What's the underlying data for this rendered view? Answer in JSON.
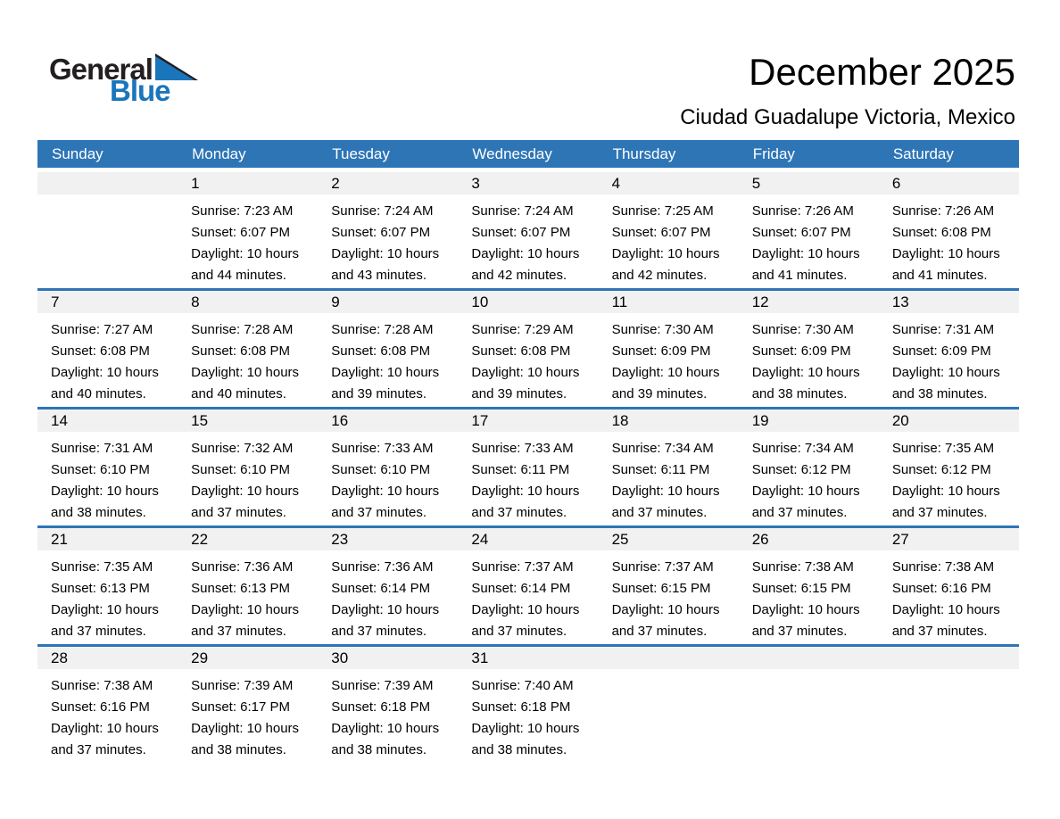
{
  "logo": {
    "word_top": "General",
    "word_bottom": "Blue"
  },
  "title_block": {
    "month_year": "December 2025",
    "location": "Ciudad Guadalupe Victoria, Mexico"
  },
  "colors": {
    "header_bg": "#2e75b6",
    "week_divider": "#2e75b6",
    "day_number_strip_bg": "#f1f1f1",
    "weekday_text": "#ffffff",
    "logo_blue": "#1b75bb",
    "logo_black": "#231f20"
  },
  "calendar": {
    "day_headers": [
      "Sunday",
      "Monday",
      "Tuesday",
      "Wednesday",
      "Thursday",
      "Friday",
      "Saturday"
    ],
    "weeks": [
      {
        "days": [
          null,
          {
            "date": "1",
            "sunrise": "Sunrise: 7:23 AM",
            "sunset": "Sunset: 6:07 PM",
            "daylight_line1": "Daylight: 10 hours",
            "daylight_line2": "and 44 minutes."
          },
          {
            "date": "2",
            "sunrise": "Sunrise: 7:24 AM",
            "sunset": "Sunset: 6:07 PM",
            "daylight_line1": "Daylight: 10 hours",
            "daylight_line2": "and 43 minutes."
          },
          {
            "date": "3",
            "sunrise": "Sunrise: 7:24 AM",
            "sunset": "Sunset: 6:07 PM",
            "daylight_line1": "Daylight: 10 hours",
            "daylight_line2": "and 42 minutes."
          },
          {
            "date": "4",
            "sunrise": "Sunrise: 7:25 AM",
            "sunset": "Sunset: 6:07 PM",
            "daylight_line1": "Daylight: 10 hours",
            "daylight_line2": "and 42 minutes."
          },
          {
            "date": "5",
            "sunrise": "Sunrise: 7:26 AM",
            "sunset": "Sunset: 6:07 PM",
            "daylight_line1": "Daylight: 10 hours",
            "daylight_line2": "and 41 minutes."
          },
          {
            "date": "6",
            "sunrise": "Sunrise: 7:26 AM",
            "sunset": "Sunset: 6:08 PM",
            "daylight_line1": "Daylight: 10 hours",
            "daylight_line2": "and 41 minutes."
          }
        ]
      },
      {
        "days": [
          {
            "date": "7",
            "sunrise": "Sunrise: 7:27 AM",
            "sunset": "Sunset: 6:08 PM",
            "daylight_line1": "Daylight: 10 hours",
            "daylight_line2": "and 40 minutes."
          },
          {
            "date": "8",
            "sunrise": "Sunrise: 7:28 AM",
            "sunset": "Sunset: 6:08 PM",
            "daylight_line1": "Daylight: 10 hours",
            "daylight_line2": "and 40 minutes."
          },
          {
            "date": "9",
            "sunrise": "Sunrise: 7:28 AM",
            "sunset": "Sunset: 6:08 PM",
            "daylight_line1": "Daylight: 10 hours",
            "daylight_line2": "and 39 minutes."
          },
          {
            "date": "10",
            "sunrise": "Sunrise: 7:29 AM",
            "sunset": "Sunset: 6:08 PM",
            "daylight_line1": "Daylight: 10 hours",
            "daylight_line2": "and 39 minutes."
          },
          {
            "date": "11",
            "sunrise": "Sunrise: 7:30 AM",
            "sunset": "Sunset: 6:09 PM",
            "daylight_line1": "Daylight: 10 hours",
            "daylight_line2": "and 39 minutes."
          },
          {
            "date": "12",
            "sunrise": "Sunrise: 7:30 AM",
            "sunset": "Sunset: 6:09 PM",
            "daylight_line1": "Daylight: 10 hours",
            "daylight_line2": "and 38 minutes."
          },
          {
            "date": "13",
            "sunrise": "Sunrise: 7:31 AM",
            "sunset": "Sunset: 6:09 PM",
            "daylight_line1": "Daylight: 10 hours",
            "daylight_line2": "and 38 minutes."
          }
        ]
      },
      {
        "days": [
          {
            "date": "14",
            "sunrise": "Sunrise: 7:31 AM",
            "sunset": "Sunset: 6:10 PM",
            "daylight_line1": "Daylight: 10 hours",
            "daylight_line2": "and 38 minutes."
          },
          {
            "date": "15",
            "sunrise": "Sunrise: 7:32 AM",
            "sunset": "Sunset: 6:10 PM",
            "daylight_line1": "Daylight: 10 hours",
            "daylight_line2": "and 37 minutes."
          },
          {
            "date": "16",
            "sunrise": "Sunrise: 7:33 AM",
            "sunset": "Sunset: 6:10 PM",
            "daylight_line1": "Daylight: 10 hours",
            "daylight_line2": "and 37 minutes."
          },
          {
            "date": "17",
            "sunrise": "Sunrise: 7:33 AM",
            "sunset": "Sunset: 6:11 PM",
            "daylight_line1": "Daylight: 10 hours",
            "daylight_line2": "and 37 minutes."
          },
          {
            "date": "18",
            "sunrise": "Sunrise: 7:34 AM",
            "sunset": "Sunset: 6:11 PM",
            "daylight_line1": "Daylight: 10 hours",
            "daylight_line2": "and 37 minutes."
          },
          {
            "date": "19",
            "sunrise": "Sunrise: 7:34 AM",
            "sunset": "Sunset: 6:12 PM",
            "daylight_line1": "Daylight: 10 hours",
            "daylight_line2": "and 37 minutes."
          },
          {
            "date": "20",
            "sunrise": "Sunrise: 7:35 AM",
            "sunset": "Sunset: 6:12 PM",
            "daylight_line1": "Daylight: 10 hours",
            "daylight_line2": "and 37 minutes."
          }
        ]
      },
      {
        "days": [
          {
            "date": "21",
            "sunrise": "Sunrise: 7:35 AM",
            "sunset": "Sunset: 6:13 PM",
            "daylight_line1": "Daylight: 10 hours",
            "daylight_line2": "and 37 minutes."
          },
          {
            "date": "22",
            "sunrise": "Sunrise: 7:36 AM",
            "sunset": "Sunset: 6:13 PM",
            "daylight_line1": "Daylight: 10 hours",
            "daylight_line2": "and 37 minutes."
          },
          {
            "date": "23",
            "sunrise": "Sunrise: 7:36 AM",
            "sunset": "Sunset: 6:14 PM",
            "daylight_line1": "Daylight: 10 hours",
            "daylight_line2": "and 37 minutes."
          },
          {
            "date": "24",
            "sunrise": "Sunrise: 7:37 AM",
            "sunset": "Sunset: 6:14 PM",
            "daylight_line1": "Daylight: 10 hours",
            "daylight_line2": "and 37 minutes."
          },
          {
            "date": "25",
            "sunrise": "Sunrise: 7:37 AM",
            "sunset": "Sunset: 6:15 PM",
            "daylight_line1": "Daylight: 10 hours",
            "daylight_line2": "and 37 minutes."
          },
          {
            "date": "26",
            "sunrise": "Sunrise: 7:38 AM",
            "sunset": "Sunset: 6:15 PM",
            "daylight_line1": "Daylight: 10 hours",
            "daylight_line2": "and 37 minutes."
          },
          {
            "date": "27",
            "sunrise": "Sunrise: 7:38 AM",
            "sunset": "Sunset: 6:16 PM",
            "daylight_line1": "Daylight: 10 hours",
            "daylight_line2": "and 37 minutes."
          }
        ]
      },
      {
        "days": [
          {
            "date": "28",
            "sunrise": "Sunrise: 7:38 AM",
            "sunset": "Sunset: 6:16 PM",
            "daylight_line1": "Daylight: 10 hours",
            "daylight_line2": "and 37 minutes."
          },
          {
            "date": "29",
            "sunrise": "Sunrise: 7:39 AM",
            "sunset": "Sunset: 6:17 PM",
            "daylight_line1": "Daylight: 10 hours",
            "daylight_line2": "and 38 minutes."
          },
          {
            "date": "30",
            "sunrise": "Sunrise: 7:39 AM",
            "sunset": "Sunset: 6:18 PM",
            "daylight_line1": "Daylight: 10 hours",
            "daylight_line2": "and 38 minutes."
          },
          {
            "date": "31",
            "sunrise": "Sunrise: 7:40 AM",
            "sunset": "Sunset: 6:18 PM",
            "daylight_line1": "Daylight: 10 hours",
            "daylight_line2": "and 38 minutes."
          },
          null,
          null,
          null
        ]
      }
    ]
  }
}
